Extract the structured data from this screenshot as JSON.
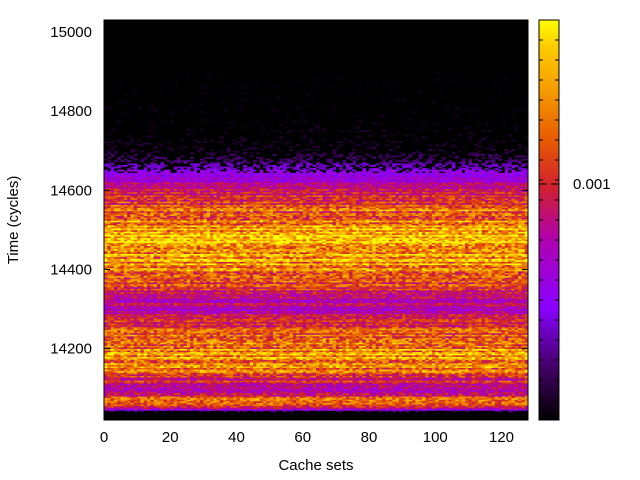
{
  "chart_data": {
    "type": "heatmap",
    "title": "",
    "xlabel": "Cache sets",
    "ylabel": "Time (cycles)",
    "xlim": [
      0,
      128
    ],
    "ylim": [
      14020,
      15030
    ],
    "x_ticks": [
      0,
      20,
      40,
      60,
      80,
      100,
      120
    ],
    "x_tick_labels": [
      "0",
      "20",
      "40",
      "60",
      "80",
      "100",
      "120"
    ],
    "y_ticks": [
      14200,
      14400,
      14600,
      14800,
      15000
    ],
    "y_tick_labels": [
      "14200",
      "14400",
      "14600",
      "14800",
      "15000"
    ],
    "colorbar": {
      "palette": "black-purple-red-orange-yellow",
      "colors": [
        "#000000",
        "#3c005a",
        "#8a00ff",
        "#b000b0",
        "#d02030",
        "#e85a00",
        "#f59a00",
        "#ffd000",
        "#ffff00"
      ],
      "tick_labels": [
        "0.001"
      ],
      "tick_positions": [
        0.59
      ],
      "range": [
        0,
        0.0017
      ]
    },
    "time_bin_width_cycles": 4,
    "series": [
      {
        "name": "",
        "profile_time": [
          14040,
          14050,
          14070,
          14100,
          14140,
          14180,
          14220,
          14260,
          14300,
          14340,
          14380,
          14420,
          14460,
          14480,
          14500,
          14540,
          14580,
          14620,
          14660,
          14700,
          14760,
          14840,
          15030
        ],
        "profile_intensity": [
          0.0,
          0.55,
          0.72,
          0.45,
          0.7,
          0.8,
          0.82,
          0.62,
          0.42,
          0.55,
          0.78,
          0.82,
          0.85,
          0.9,
          0.82,
          0.75,
          0.62,
          0.42,
          0.22,
          0.06,
          0.03,
          0.01,
          0.0
        ]
      }
    ]
  }
}
